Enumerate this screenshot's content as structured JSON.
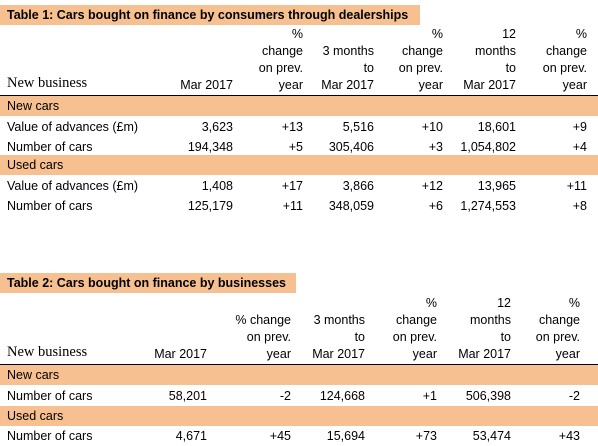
{
  "table1": {
    "title": "Table 1: Cars bought on finance by consumers through dealerships",
    "header_label": "New business",
    "headers": [
      [
        "Mar  2017"
      ],
      [
        "%",
        "change",
        "on prev.",
        "year"
      ],
      [
        "3 months",
        "to",
        "Mar  2017"
      ],
      [
        "%",
        "change",
        "on prev.",
        "year"
      ],
      [
        "12",
        "months",
        "to",
        "Mar  2017"
      ],
      [
        "%",
        "change",
        "on prev.",
        "year"
      ]
    ],
    "sections": [
      {
        "label": "New cars",
        "rows": [
          {
            "label": "Value of advances (£m)",
            "values": [
              "3,623",
              "+13",
              "5,516",
              "+10",
              "18,601",
              "+9"
            ]
          },
          {
            "label": "Number of cars",
            "values": [
              "194,348",
              "+5",
              "305,406",
              "+3",
              "1,054,802",
              "+4"
            ]
          }
        ]
      },
      {
        "label": "Used cars",
        "rows": [
          {
            "label": "Value of advances (£m)",
            "values": [
              "1,408",
              "+17",
              "3,866",
              "+12",
              "13,965",
              "+11"
            ]
          },
          {
            "label": "Number of cars",
            "values": [
              "125,179",
              "+11",
              "348,059",
              "+6",
              "1,274,553",
              "+8"
            ]
          }
        ]
      }
    ]
  },
  "table2": {
    "title": "Table 2: Cars bought on finance by businesses",
    "header_label": "New business",
    "headers": [
      [
        "Mar  2017"
      ],
      [
        "% change",
        "on prev.",
        "year"
      ],
      [
        "3 months",
        "to",
        "Mar  2017"
      ],
      [
        "%",
        "change",
        "on prev.",
        "year"
      ],
      [
        "12",
        "months",
        "to",
        "Mar  2017"
      ],
      [
        "%",
        "change",
        "on prev.",
        "year"
      ]
    ],
    "sections": [
      {
        "label": "New cars",
        "rows": [
          {
            "label": "Number of cars",
            "values": [
              "58,201",
              "-2",
              "124,668",
              "+1",
              "506,398",
              "-2"
            ]
          }
        ]
      },
      {
        "label": "Used cars",
        "rows": [
          {
            "label": "Number of cars",
            "values": [
              "4,671",
              "+45",
              "15,694",
              "+73",
              "53,474",
              "+43"
            ]
          }
        ]
      }
    ]
  }
}
